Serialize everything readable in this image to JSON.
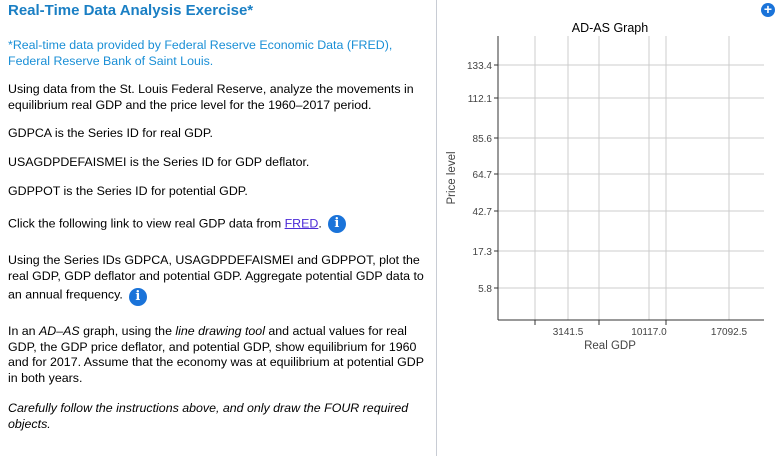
{
  "left": {
    "title": "Real-Time Data Analysis Exercise*",
    "source_note": "*Real-time data provided by Federal Reserve Economic Data (FRED), Federal Reserve Bank of Saint Louis.",
    "intro": "Using data from the St. Louis Federal Reserve, analyze the movements in equilibrium real GDP and the price level for the 1960–2017 period.",
    "series1": "GDPCA is the Series ID for real GDP.",
    "series2": "USAGDPDEFAISMEI is the Series ID for GDP deflator.",
    "series3": "GDPPOT is the Series ID for potential GDP.",
    "link_text_before": "Click the following link to view real GDP data from ",
    "link_label": "FRED",
    "link_text_after": ".",
    "plot_instructions": "Using the Series IDs GDPCA, USAGDPDEFAISMEI and GDPPOT, plot the real GDP, GDP deflator and potential GDP. Aggregate potential GDP data to an annual frequency.",
    "graph_instr_1": "In an ",
    "graph_instr_adas": "AD–AS",
    "graph_instr_2": " graph, using the ",
    "graph_instr_tool": "line drawing tool",
    "graph_instr_3": " and actual values for real GDP, the GDP price deflator, and potential GDP, show equilibrium for 1960 and for 2017. Assume that the economy was at equilibrium at potential GDP in both years.",
    "caution": "Carefully follow the instructions above, and only draw the FOUR required objects.",
    "info_icon": "i"
  },
  "right": {
    "zoom_icon": "+"
  },
  "chart_data": {
    "type": "line",
    "title": "AD-AS Graph",
    "xlabel": "Real GDP",
    "ylabel": "Price level",
    "x_tick_labels": [
      "3141.5",
      "10117.0",
      "17092.5"
    ],
    "y_tick_labels": [
      "133.4",
      "112.1",
      "85.6",
      "64.7",
      "42.7",
      "17.3",
      "5.8"
    ],
    "grid": true,
    "series": []
  },
  "colors": {
    "title": "#1a7fc4",
    "accent": "#1a73d9",
    "link": "#4b2bd6",
    "grid": "#cccccc"
  }
}
